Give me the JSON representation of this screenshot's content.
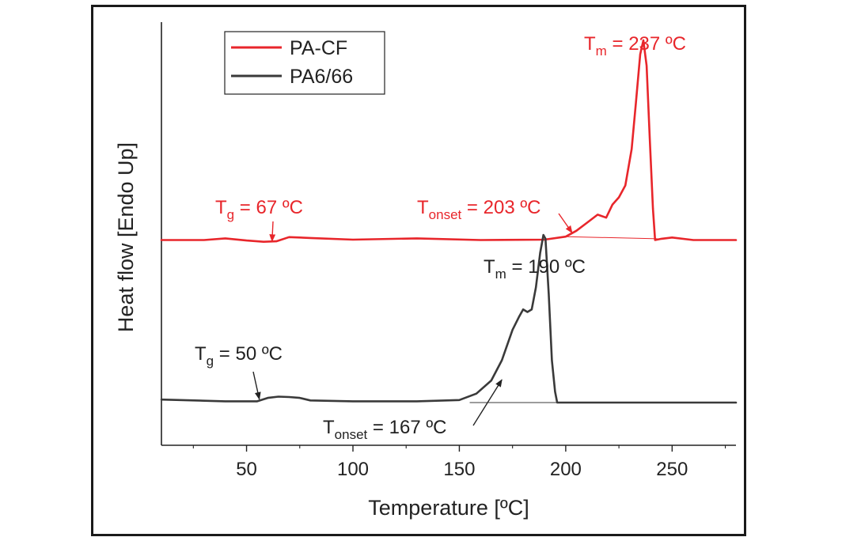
{
  "chart_data": {
    "type": "line",
    "title": "",
    "xlabel": "Temperature [ºC]",
    "ylabel": "Heat flow [Endo Up]",
    "xlim": [
      10,
      280
    ],
    "ylim": [
      0,
      100
    ],
    "xticks": [
      50,
      100,
      150,
      200,
      250
    ],
    "grid": false,
    "legend_position": "top-left",
    "colors": {
      "pa_cf": "#e8262b",
      "pa666": "#3a3a3a",
      "axis": "#222222"
    },
    "series": [
      {
        "name": "PA-CF",
        "color": "#e8262b",
        "x": [
          10,
          30,
          40,
          50,
          58,
          64,
          70,
          80,
          100,
          130,
          160,
          190,
          200,
          205,
          210,
          215,
          219,
          222,
          225,
          228,
          231,
          233,
          235,
          236.5,
          238,
          239.5,
          241,
          242,
          245,
          250,
          260,
          270,
          280
        ],
        "y": [
          48.5,
          48.5,
          48.9,
          48.4,
          48.1,
          48.2,
          49.2,
          49.0,
          48.6,
          48.9,
          48.5,
          48.6,
          49.3,
          50.7,
          52.6,
          54.5,
          53.8,
          56.9,
          58.6,
          61.4,
          70.0,
          81.0,
          92.4,
          95.7,
          89.7,
          72.4,
          55.9,
          48.5,
          48.8,
          49.1,
          48.5,
          48.5,
          48.5
        ]
      },
      {
        "name": "PA6/66",
        "color": "#3a3a3a",
        "x": [
          10,
          40,
          55,
          60,
          65,
          70,
          75,
          80,
          100,
          130,
          150,
          158,
          165,
          170,
          175,
          178,
          180,
          182,
          184,
          186,
          188,
          189.5,
          190.5,
          192,
          193.5,
          195,
          196,
          200,
          220,
          240,
          260,
          280
        ],
        "y": [
          10.8,
          10.4,
          10.4,
          11.2,
          11.5,
          11.4,
          11.2,
          10.6,
          10.4,
          10.4,
          10.7,
          12.2,
          15.3,
          20.1,
          27.3,
          30.3,
          32.1,
          31.5,
          32.1,
          37.3,
          45.5,
          49.7,
          48.8,
          35.8,
          20.1,
          12.7,
          10.1,
          10.1,
          10.1,
          10.1,
          10.1,
          10.1
        ]
      },
      {
        "name": "PA-CF baseline",
        "color": "#e8262b",
        "x": [
          200,
          243
        ],
        "y": [
          49.3,
          48.8
        ]
      },
      {
        "name": "PA6/66 baseline",
        "color": "#3a3a3a",
        "x": [
          155,
          200
        ],
        "y": [
          10.1,
          10.1
        ]
      }
    ],
    "annotations": [
      {
        "id": "tm_pacf",
        "base": "T",
        "sub": "m",
        "rest": " = 237 ºC",
        "color": "#e8262b",
        "arrow": false
      },
      {
        "id": "tg_pacf",
        "base": "T",
        "sub": "g",
        "rest": " = 67 ºC",
        "color": "#e8262b",
        "arrow": true,
        "arrow_to": [
          62,
          48.2
        ]
      },
      {
        "id": "tonset_pacf",
        "base": "T",
        "sub": "onset",
        "rest": " = 203 ºC",
        "color": "#e8262b",
        "arrow": true,
        "arrow_to": [
          203,
          50.2
        ]
      },
      {
        "id": "tm_pa666",
        "base": "T",
        "sub": "m",
        "rest": " = 190 ºC",
        "color": "#222222",
        "arrow": false
      },
      {
        "id": "tg_pa666",
        "base": "T",
        "sub": "g",
        "rest": " = 50 ºC",
        "color": "#222222",
        "arrow": true,
        "arrow_to": [
          56,
          10.9
        ]
      },
      {
        "id": "tonset_pa666",
        "base": "T",
        "sub": "onset",
        "rest": " = 167 ºC",
        "color": "#222222",
        "arrow": true,
        "arrow_to": [
          170,
          15.5
        ]
      }
    ]
  }
}
